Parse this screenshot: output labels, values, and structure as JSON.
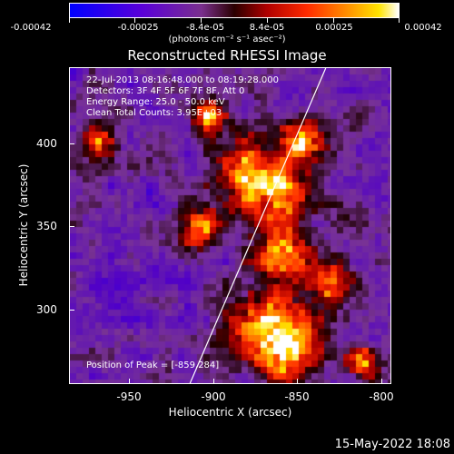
{
  "colorbar": {
    "labels": [
      "-0.00042",
      "-0.00025",
      "-8.4e-05",
      "8.4e-05",
      "0.00025",
      "0.00042"
    ],
    "units": "(photons cm⁻² s⁻¹ asec⁻²)"
  },
  "title": "Reconstructed RHESSI Image",
  "info": {
    "time_range": "22-Jul-2013 08:16:48.000 to 08:19:28.000",
    "detectors": "Detectors: 3F 4F 5F 6F 7F 8F, Att 0",
    "energy": "Energy Range: 25.0 - 50.0 keV",
    "algorithm": "Clean      Total Counts: 3.95E+03",
    "peak": "Position of Peak = [-859,284]"
  },
  "chart_data": {
    "type": "heatmap",
    "title": "Reconstructed RHESSI Image",
    "xlabel": "Heliocentric X (arcsec)",
    "ylabel": "Heliocentric Y (arcsec)",
    "xlim": [
      -982,
      -793
    ],
    "ylim": [
      252,
      438
    ],
    "x_ticks": [
      -950,
      -900,
      -850,
      -800
    ],
    "y_ticks": [
      300,
      350,
      400
    ],
    "clim": [
      -0.00042,
      0.00042
    ],
    "peak": [
      -859,
      284
    ],
    "limb_line": [
      [
        -912,
        252
      ],
      [
        -832,
        438
      ]
    ]
  },
  "xaxis": {
    "title": "Heliocentric X (arcsec)",
    "labels": [
      "-950",
      "-900",
      "-850",
      "-800"
    ]
  },
  "yaxis": {
    "title": "Heliocentric Y (arcsec)",
    "labels": [
      "400",
      "350",
      "300"
    ]
  },
  "footer": {
    "date": "15-May-2022 18:08"
  }
}
